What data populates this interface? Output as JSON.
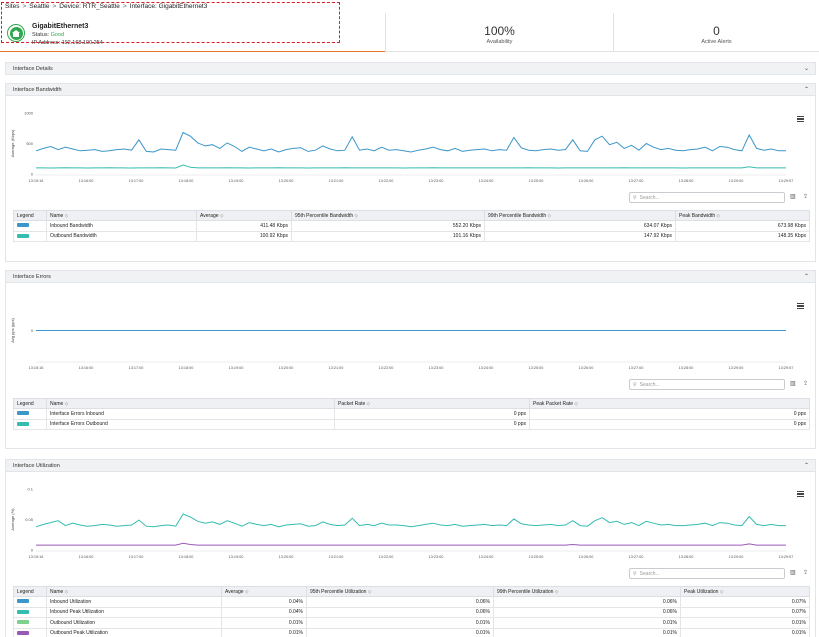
{
  "breadcrumb": [
    "Sites",
    "Seattle",
    "Device: RTR_Seattle",
    "Interface: GigabitEthernet3"
  ],
  "device": {
    "name": "GigabitEthernet3",
    "status_label": "Status:",
    "status_value": "Good",
    "ip_label": "IP Address:",
    "ip_value": "192.168.100.254"
  },
  "metrics": [
    {
      "value": "100%",
      "label": "Availability"
    },
    {
      "value": "0",
      "label": "Active Alerts"
    }
  ],
  "colors": {
    "accent": "#e87b2b",
    "good": "#2fa84f",
    "dash": "#d81f26",
    "series_blue": "#3c96c9",
    "series_teal": "#34bcb1",
    "series_green": "#7fd08a",
    "series_purple": "#9b59b6"
  },
  "icons": {
    "device": "device-home-icon",
    "menu": "menu-icon",
    "search": "search-icon",
    "columns": "columns-icon",
    "export": "export-icon",
    "chevron_down": "chevron-down-icon",
    "chevron_up": "chevron-up-icon"
  },
  "sections": {
    "details": {
      "title": "Interface Details"
    },
    "bandwidth": {
      "title": "Interface Bandwidth",
      "search_placeholder": "Search...",
      "columns": [
        "Legend",
        "Name",
        "Average",
        "95th Percentile Bandwidth",
        "99th Percentile Bandwidth",
        "Peak Bandwidth"
      ],
      "rows": [
        {
          "name": "Inbound Bandwidth",
          "avg": "411.48 Kbps",
          "p95": "552.20 Kbps",
          "p99": "634.07 Kbps",
          "peak": "673.98 Kbps",
          "color": "#3c96c9"
        },
        {
          "name": "Outbound Bandwidth",
          "avg": "100.92 Kbps",
          "p95": "101.16 Kbps",
          "p99": "147.92 Kbps",
          "peak": "148.35 Kbps",
          "color": "#34bcb1"
        }
      ]
    },
    "errors": {
      "title": "Interface Errors",
      "search_placeholder": "Search...",
      "columns": [
        "Legend",
        "Name",
        "Packet Rate",
        "Peak Packet Rate"
      ],
      "rows": [
        {
          "name": "Interface Errors Inbound",
          "rate": "0 pps",
          "peak": "0 pps",
          "color": "#3c96c9"
        },
        {
          "name": "Interface Errors Outbound",
          "rate": "0 pps",
          "peak": "0 pps",
          "color": "#34bcb1"
        }
      ]
    },
    "utilization": {
      "title": "Interface Utilization",
      "search_placeholder": "Search...",
      "columns": [
        "Legend",
        "Name",
        "Average",
        "95th Percentile Utilization",
        "99th Percentile Utilization",
        "Peak Utilization"
      ],
      "rows": [
        {
          "name": "Inbound Utilization",
          "avg": "0.04%",
          "p95": "0.06%",
          "p99": "0.06%",
          "peak": "0.07%",
          "color": "#3c96c9"
        },
        {
          "name": "Inbound Peak Utilization",
          "avg": "0.04%",
          "p95": "0.06%",
          "p99": "0.06%",
          "peak": "0.07%",
          "color": "#34bcb1"
        },
        {
          "name": "Outbound Utilization",
          "avg": "0.01%",
          "p95": "0.01%",
          "p99": "0.01%",
          "peak": "0.01%",
          "color": "#7fd08a"
        },
        {
          "name": "Outbound Peak Utilization",
          "avg": "0.01%",
          "p95": "0.01%",
          "p99": "0.01%",
          "peak": "0.01%",
          "color": "#9b59b6"
        }
      ]
    }
  },
  "chart_data": [
    {
      "type": "line",
      "ylabel": "Average (Kbps)",
      "ylim": [
        0,
        1000
      ],
      "yticks": [
        "0",
        "500",
        "1000"
      ],
      "x_ticks": [
        "13:15:16",
        "13:16:00",
        "13:17:00",
        "13:18:00",
        "13:19:00",
        "13:20:00",
        "13:21:00",
        "13:22:00",
        "13:23:00",
        "13:24:00",
        "13:25:00",
        "13:26:00",
        "13:27:00",
        "13:28:00",
        "13:29:00",
        "13:29:57"
      ],
      "series": [
        {
          "name": "Inbound Bandwidth",
          "color": "#3c96c9",
          "values": [
            380,
            420,
            450,
            400,
            440,
            410,
            380,
            390,
            400,
            370,
            380,
            400,
            410,
            390,
            560,
            370,
            360,
            410,
            400,
            390,
            680,
            620,
            510,
            460,
            480,
            420,
            510,
            450,
            370,
            440,
            410,
            380,
            410,
            360,
            400,
            420,
            430,
            370,
            390,
            460,
            410,
            380,
            390,
            610,
            390,
            410,
            380,
            440,
            390,
            400,
            380,
            360,
            390,
            410,
            440,
            400,
            380,
            420,
            370,
            390,
            400,
            410,
            380,
            400,
            390,
            600,
            430,
            390,
            380,
            400,
            410,
            390,
            400,
            560,
            380,
            370,
            560,
            620,
            480,
            520,
            420,
            470,
            390,
            500,
            440,
            400,
            420,
            390,
            380,
            400,
            410,
            440,
            380,
            450,
            440,
            400,
            380,
            640,
            420,
            390,
            410,
            380,
            380
          ]
        },
        {
          "name": "Outbound Bandwidth",
          "color": "#34bcb1",
          "values": [
            100,
            100,
            98,
            100,
            101,
            100,
            100,
            99,
            100,
            100,
            101,
            100,
            100,
            99,
            100,
            100,
            100,
            101,
            100,
            99,
            148,
            110,
            100,
            100,
            100,
            100,
            101,
            100,
            100,
            99,
            100,
            100,
            100,
            101,
            100,
            100,
            100,
            99,
            100,
            100,
            100,
            100,
            101,
            100,
            100,
            100,
            100,
            100,
            100,
            100,
            99,
            100,
            100,
            100,
            101,
            100,
            100,
            100,
            100,
            100,
            100,
            100,
            100,
            100,
            100,
            100,
            100,
            101,
            100,
            100,
            100,
            99,
            100,
            100,
            100,
            100,
            100,
            100,
            100,
            100,
            101,
            100,
            100,
            100,
            100,
            100,
            100,
            100,
            99,
            100,
            100,
            100,
            100,
            100,
            100,
            100,
            100,
            120,
            100,
            100,
            100,
            100,
            100
          ]
        }
      ]
    },
    {
      "type": "line",
      "ylabel": "Avg pps (pps)",
      "ylim": [
        -1,
        1
      ],
      "yticks": [
        "0"
      ],
      "x_ticks": [
        "13:15:16",
        "13:16:00",
        "13:17:00",
        "13:18:00",
        "13:19:00",
        "13:20:00",
        "13:21:00",
        "13:22:00",
        "13:23:00",
        "13:24:00",
        "13:25:00",
        "13:26:00",
        "13:27:00",
        "13:28:00",
        "13:29:00",
        "13:29:57"
      ],
      "series": [
        {
          "name": "Interface Errors Inbound",
          "color": "#3c96c9",
          "values": [
            0,
            0
          ]
        },
        {
          "name": "Interface Errors Outbound",
          "color": "#34bcb1",
          "values": [
            0,
            0
          ]
        }
      ]
    },
    {
      "type": "line",
      "ylabel": "Average (%)",
      "ylim": [
        0,
        0.1
      ],
      "yticks": [
        "0",
        "0.05",
        "0.1"
      ],
      "x_ticks": [
        "13:15:16",
        "13:16:00",
        "13:17:00",
        "13:18:00",
        "13:19:00",
        "13:20:00",
        "13:21:00",
        "13:22:00",
        "13:23:00",
        "13:24:00",
        "13:25:00",
        "13:26:00",
        "13:27:00",
        "13:28:00",
        "13:29:00",
        "13:29:57"
      ],
      "series": [
        {
          "name": "Inbound Utilization",
          "color": "#34bcb1",
          "values": [
            0.038,
            0.042,
            0.045,
            0.048,
            0.04,
            0.044,
            0.041,
            0.039,
            0.04,
            0.042,
            0.041,
            0.039,
            0.04,
            0.041,
            0.049,
            0.039,
            0.038,
            0.04,
            0.041,
            0.039,
            0.059,
            0.054,
            0.047,
            0.044,
            0.046,
            0.042,
            0.048,
            0.044,
            0.039,
            0.045,
            0.042,
            0.04,
            0.042,
            0.038,
            0.041,
            0.042,
            0.043,
            0.039,
            0.04,
            0.046,
            0.042,
            0.04,
            0.041,
            0.052,
            0.04,
            0.042,
            0.04,
            0.044,
            0.041,
            0.041,
            0.04,
            0.038,
            0.04,
            0.042,
            0.044,
            0.041,
            0.04,
            0.042,
            0.039,
            0.04,
            0.041,
            0.042,
            0.04,
            0.041,
            0.04,
            0.051,
            0.043,
            0.041,
            0.04,
            0.041,
            0.042,
            0.04,
            0.041,
            0.048,
            0.04,
            0.039,
            0.048,
            0.053,
            0.045,
            0.047,
            0.042,
            0.045,
            0.04,
            0.047,
            0.044,
            0.041,
            0.042,
            0.04,
            0.04,
            0.041,
            0.042,
            0.044,
            0.04,
            0.045,
            0.044,
            0.041,
            0.04,
            0.055,
            0.042,
            0.04,
            0.042,
            0.04,
            0.04
          ]
        },
        {
          "name": "Outbound Utilization",
          "color": "#9b59b6",
          "values": [
            0.008,
            0.008,
            0.008,
            0.008,
            0.008,
            0.008,
            0.008,
            0.008,
            0.008,
            0.008,
            0.008,
            0.008,
            0.008,
            0.008,
            0.008,
            0.008,
            0.008,
            0.008,
            0.008,
            0.008,
            0.011,
            0.009,
            0.008,
            0.008,
            0.008,
            0.008,
            0.008,
            0.008,
            0.008,
            0.008,
            0.008,
            0.008,
            0.008,
            0.008,
            0.008,
            0.008,
            0.008,
            0.008,
            0.008,
            0.008,
            0.008,
            0.008,
            0.008,
            0.008,
            0.008,
            0.008,
            0.008,
            0.008,
            0.008,
            0.008,
            0.008,
            0.008,
            0.008,
            0.008,
            0.008,
            0.008,
            0.008,
            0.008,
            0.008,
            0.008,
            0.008,
            0.008,
            0.008,
            0.008,
            0.008,
            0.008,
            0.008,
            0.008,
            0.008,
            0.008,
            0.008,
            0.008,
            0.008,
            0.009,
            0.008,
            0.008,
            0.008,
            0.008,
            0.008,
            0.008,
            0.008,
            0.008,
            0.008,
            0.008,
            0.008,
            0.008,
            0.008,
            0.008,
            0.008,
            0.008,
            0.008,
            0.008,
            0.008,
            0.008,
            0.008,
            0.008,
            0.008,
            0.01,
            0.008,
            0.008,
            0.008,
            0.008,
            0.008
          ]
        }
      ]
    }
  ]
}
